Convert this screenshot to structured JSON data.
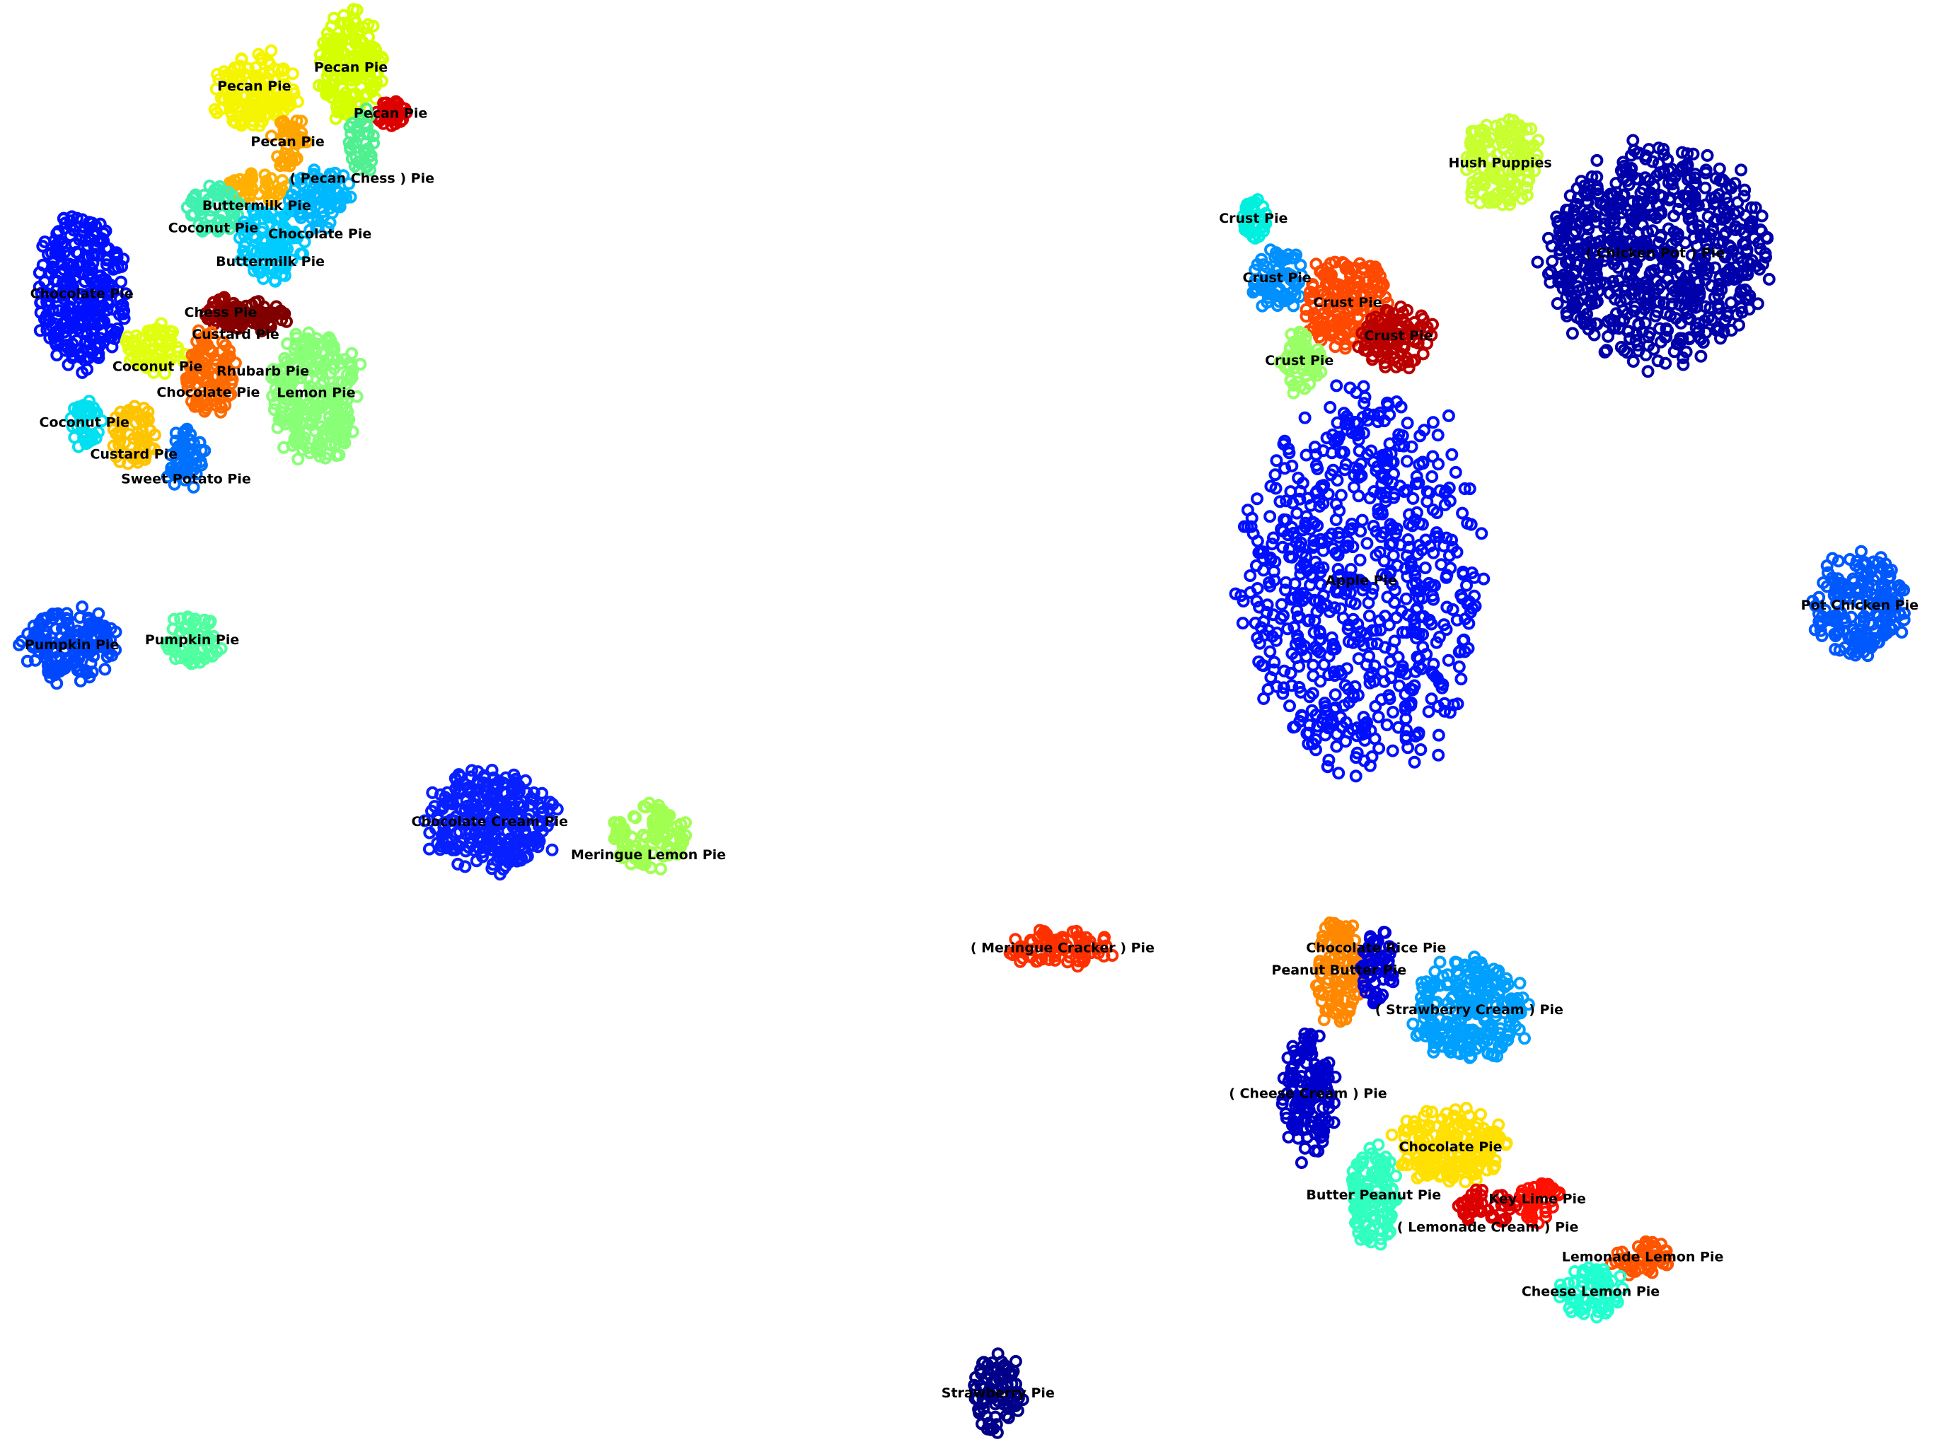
{
  "chart_data": {
    "type": "scatter",
    "title": "",
    "xlabel": "",
    "ylabel": "",
    "axes_visible": false,
    "grid": false,
    "legend": "none",
    "marker": "open-circle",
    "xlim": [
      -78.4,
      78.4
    ],
    "ylim": [
      -58.8,
      58.8
    ],
    "clusters": [
      {
        "label": "Pecan Pie",
        "color": "#f5f500",
        "x": -57.9,
        "y": 51.8,
        "sx": 3.5,
        "sy": 3
      },
      {
        "label": "Pecan Pie",
        "color": "#d4ff00",
        "x": -50.1,
        "y": 53.3,
        "sx": 2.5,
        "sy": 4.5
      },
      {
        "label": "Pecan Pie",
        "color": "#dd0000",
        "x": -46.9,
        "y": 49.6,
        "sx": 1.2,
        "sy": 1
      },
      {
        "label": "Pecan Pie",
        "color": "#ffa500",
        "x": -55.2,
        "y": 47.3,
        "sx": 1.5,
        "sy": 2
      },
      {
        "label": "( Pecan Chess ) Pie",
        "color": "#50f090",
        "x": -49.2,
        "y": 47.3,
        "sx": 1.2,
        "sy": 2.5
      },
      {
        "label": "Buttermilk Pie",
        "color": "#ffb000",
        "x": -57.7,
        "y": 43.6,
        "sx": 2.5,
        "sy": 1.2
      },
      {
        "label": "Chocolate Pie",
        "color": "#00b8ff",
        "x": -52.6,
        "y": 42.8,
        "sx": 2.5,
        "sy": 2.5
      },
      {
        "label": "Coconut Pie",
        "color": "#40f0b0",
        "x": -61.2,
        "y": 41.8,
        "sx": 2.2,
        "sy": 2
      },
      {
        "label": "Buttermilk Pie",
        "color": "#00ccff",
        "x": -56.6,
        "y": 39.1,
        "sx": 2.5,
        "sy": 3
      },
      {
        "label": "Chocolate Pie",
        "color": "#0010ff",
        "x": -71.8,
        "y": 35,
        "sx": 3.5,
        "sy": 6
      },
      {
        "label": "Chess Pie",
        "color": "#990000",
        "x": -60.6,
        "y": 33.5,
        "sx": 1.2,
        "sy": 1.2
      },
      {
        "label": "Custard Pie",
        "color": "#880000",
        "x": -59.4,
        "y": 33.2,
        "sx": 1,
        "sy": 1
      },
      {
        "label": "Rhubarb Pie",
        "color": "#800000",
        "x": -57.2,
        "y": 33.2,
        "sx": 1.8,
        "sy": 1.2
      },
      {
        "label": "Coconut Pie",
        "color": "#e0ff10",
        "x": -65.7,
        "y": 30.6,
        "sx": 2.5,
        "sy": 2
      },
      {
        "label": "Chocolate Pie",
        "color": "#ff6a00",
        "x": -61.6,
        "y": 28.5,
        "sx": 2,
        "sy": 3.5
      },
      {
        "label": "Lemon Pie",
        "color": "#88ff77",
        "x": -52.9,
        "y": 27,
        "sx": 3.5,
        "sy": 5
      },
      {
        "label": "Coconut Pie",
        "color": "#00e0f0",
        "x": -71.6,
        "y": 24.6,
        "sx": 1.5,
        "sy": 1.8
      },
      {
        "label": "Custard Pie",
        "color": "#ffc400",
        "x": -67.6,
        "y": 23.5,
        "sx": 1.8,
        "sy": 2.5
      },
      {
        "label": "Sweet Potato Pie",
        "color": "#0070ff",
        "x": -63.4,
        "y": 21.5,
        "sx": 1.5,
        "sy": 2.5
      },
      {
        "label": "Pumpkin Pie",
        "color": "#0048ff",
        "x": -72.6,
        "y": 6.6,
        "sx": 3.8,
        "sy": 3
      },
      {
        "label": "Pumpkin Pie",
        "color": "#50ffa0",
        "x": -62.9,
        "y": 7,
        "sx": 2.2,
        "sy": 2
      },
      {
        "label": "Chocolate Cream Pie",
        "color": "#0820ff",
        "x": -38.9,
        "y": -7.7,
        "sx": 5,
        "sy": 4
      },
      {
        "label": "Meringue Lemon Pie",
        "color": "#a0ff50",
        "x": -26.1,
        "y": -8.9,
        "sx": 3,
        "sy": 2.5
      },
      {
        "label": "( Meringue Cracker ) Pie",
        "color": "#ff3000",
        "x": 7.3,
        "y": -17.9,
        "sx": 4,
        "sy": 1.5
      },
      {
        "label": "Crust Pie",
        "color": "#00f0e0",
        "x": 22.7,
        "y": 41.1,
        "sx": 1,
        "sy": 1.5
      },
      {
        "label": "Crust Pie",
        "color": "#0090ff",
        "x": 24.6,
        "y": 36.3,
        "sx": 2,
        "sy": 2.5
      },
      {
        "label": "Crust Pie",
        "color": "#ff4800",
        "x": 30.3,
        "y": 34.3,
        "sx": 3.5,
        "sy": 3.5
      },
      {
        "label": "Crust Pie",
        "color": "#bb0000",
        "x": 34.4,
        "y": 31.6,
        "sx": 3,
        "sy": 2.5
      },
      {
        "label": "Crust Pie",
        "color": "#99ff66",
        "x": 26.4,
        "y": 29.6,
        "sx": 1.8,
        "sy": 2.5
      },
      {
        "label": "Hush Puppies",
        "color": "#c8ff30",
        "x": 42.6,
        "y": 45.6,
        "sx": 3,
        "sy": 3.5
      },
      {
        "label": "( Chicken Pot ) Pie",
        "color": "#0000aa",
        "x": 55.1,
        "y": 38.3,
        "sx": 8.5,
        "sy": 8.5
      },
      {
        "label": "Apple Pie",
        "color": "#0010ff",
        "x": 31.4,
        "y": 11.8,
        "sx": 9,
        "sy": 15
      },
      {
        "label": "Pot Chicken Pie",
        "color": "#0058ff",
        "x": 71.6,
        "y": 9.8,
        "sx": 3.5,
        "sy": 4
      },
      {
        "label": "Peanut Butter Pie",
        "color": "#ff8800",
        "x": 29.6,
        "y": -19.7,
        "sx": 2,
        "sy": 4
      },
      {
        "label": "Chocolate Rice Pie",
        "color": "#0000dd",
        "x": 32.6,
        "y": -19.4,
        "sx": 1.5,
        "sy": 3
      },
      {
        "label": "( Strawberry Cream ) Pie",
        "color": "#00a0ff",
        "x": 40.1,
        "y": -22.9,
        "sx": 4.5,
        "sy": 4
      },
      {
        "label": "( Cheese Cream ) Pie",
        "color": "#0000cc",
        "x": 27.1,
        "y": -29.7,
        "sx": 2,
        "sy": 5
      },
      {
        "label": "Chocolate Pie",
        "color": "#ffe000",
        "x": 38.6,
        "y": -34,
        "sx": 4.5,
        "sy": 3
      },
      {
        "label": "Butter Peanut Pie",
        "color": "#30ffc0",
        "x": 32.4,
        "y": -37.9,
        "sx": 2,
        "sy": 4
      },
      {
        "label": "Key Lime Pie",
        "color": "#ff1000",
        "x": 45.6,
        "y": -38.2,
        "sx": 1.8,
        "sy": 1.8
      },
      {
        "label": "( Lemonade Cream ) Pie",
        "color": "#dd0000",
        "x": 41.6,
        "y": -39,
        "sx": 2.2,
        "sy": 1.5
      },
      {
        "label": "Lemonade Lemon Pie",
        "color": "#ff5500",
        "x": 54.1,
        "y": -42.9,
        "sx": 2.5,
        "sy": 1.5
      },
      {
        "label": "Cheese Lemon Pie",
        "color": "#20ffd0",
        "x": 49.9,
        "y": -45.7,
        "sx": 2.5,
        "sy": 2
      },
      {
        "label": "Strawberry Pie",
        "color": "#000088",
        "x": 2.1,
        "y": -53.9,
        "sx": 2,
        "sy": 3
      }
    ]
  }
}
